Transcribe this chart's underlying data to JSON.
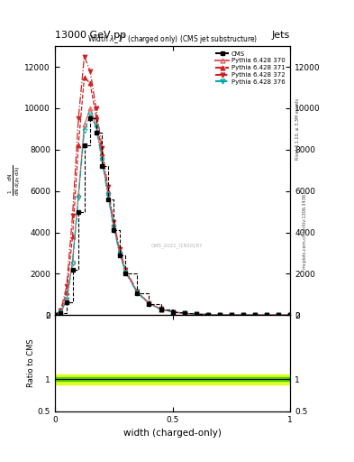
{
  "title_top": "13000 GeV pp",
  "title_right": "Jets",
  "plot_title": "Width $\\lambda$_1$^1$ (charged only) (CMS jet substructure)",
  "xlabel": "width (charged-only)",
  "ylabel_ratio": "Ratio to CMS",
  "right_label1": "Rivet 3.1.10, ≥ 3.3M events",
  "right_label2": "mcplots.cern.ch [arXiv:1306.3436]",
  "watermark": "CMS_2021_I1920187",
  "xlim": [
    0.0,
    1.0
  ],
  "ylim_main": [
    0,
    13000
  ],
  "ylim_ratio": [
    0.5,
    2.0
  ],
  "yticks_main": [
    0,
    2000,
    4000,
    6000,
    8000,
    10000,
    12000
  ],
  "ytick_labels_main": [
    "0",
    "2000",
    "4000",
    "6000",
    "8000",
    "10000",
    "12000"
  ],
  "yticks_ratio": [
    0.5,
    1.0,
    2.0
  ],
  "ytick_labels_ratio": [
    "0.5",
    "1",
    "2"
  ],
  "xticks": [
    0.0,
    0.5,
    1.0
  ],
  "xtick_labels": [
    "0",
    "0.5",
    "1"
  ],
  "x_data": [
    0.0,
    0.025,
    0.05,
    0.075,
    0.1,
    0.125,
    0.15,
    0.175,
    0.2,
    0.225,
    0.25,
    0.275,
    0.3,
    0.35,
    0.4,
    0.45,
    0.5,
    0.55,
    0.6,
    0.65,
    0.7,
    0.75,
    0.8,
    0.85,
    0.9,
    0.95,
    1.0
  ],
  "cms_y": [
    0,
    100,
    600,
    2200,
    5000,
    8200,
    9500,
    8800,
    7200,
    5600,
    4100,
    2900,
    2000,
    1050,
    530,
    270,
    150,
    80,
    45,
    25,
    15,
    9,
    5,
    3,
    2,
    1,
    0
  ],
  "py370_y": [
    0,
    130,
    750,
    2600,
    5800,
    9200,
    10000,
    9200,
    7600,
    5900,
    4300,
    3000,
    2100,
    1100,
    560,
    285,
    158,
    85,
    47,
    27,
    16,
    10,
    6,
    3,
    2,
    1,
    0
  ],
  "py371_y": [
    0,
    180,
    1100,
    3800,
    8200,
    11500,
    11200,
    9600,
    7800,
    6000,
    4400,
    3100,
    2150,
    1120,
    570,
    290,
    160,
    86,
    48,
    27,
    16,
    10,
    6,
    3,
    2,
    1,
    0
  ],
  "py372_y": [
    0,
    220,
    1400,
    4800,
    9500,
    12500,
    11800,
    10000,
    8100,
    6200,
    4500,
    3200,
    2200,
    1140,
    580,
    295,
    162,
    87,
    49,
    28,
    17,
    10,
    6,
    3,
    2,
    1,
    0
  ],
  "py376_y": [
    0,
    130,
    750,
    2500,
    5700,
    8900,
    9700,
    9100,
    7500,
    5800,
    4250,
    2970,
    2070,
    1080,
    550,
    280,
    156,
    84,
    47,
    27,
    16,
    10,
    6,
    3,
    2,
    1,
    0
  ],
  "cms_color": "#000000",
  "py370_color": "#e06060",
  "py371_color": "#cc2222",
  "py372_color": "#cc2222",
  "py376_color": "#00aaaa",
  "yellow_band": 0.08,
  "green_band": 0.025,
  "background_color": "#ffffff"
}
